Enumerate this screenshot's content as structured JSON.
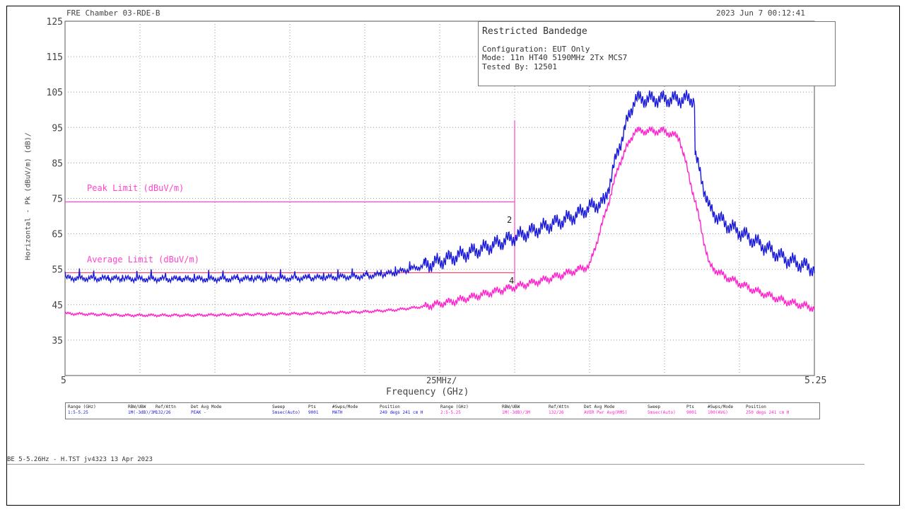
{
  "header": {
    "title": "FRE Chamber 03-RDE-B",
    "datetime": "2023 Jun 7   00:12:41"
  },
  "infobox": {
    "title": "Restricted Bandedge",
    "configuration": "Configuration: EUT Only",
    "mode": "Mode: 11n HT40 5190MHz 2Tx MCS7",
    "tested_by": "Tested By: 12501"
  },
  "footer": "BE 5-5.26Hz - H.TST  jv4323 13 Apr 2023",
  "colors": {
    "peak": "#1a1ad8",
    "average": "#ff22cc",
    "grid": "#9a9a9a",
    "limit": "#ff44cc"
  },
  "markers": [
    "2",
    "4"
  ],
  "chart_data": {
    "type": "line",
    "ylabel": "Horizontal - Pk (dBuV/m) (dB)/",
    "xlabel": "Frequency (GHz)",
    "x_center_label": "25MHz/",
    "xlim": [
      5,
      5.25
    ],
    "x_tick_labels": [
      "5",
      "5.25"
    ],
    "ylim": [
      25,
      125
    ],
    "y_ticks": [
      125,
      115,
      105,
      95,
      85,
      75,
      65,
      55,
      45,
      35
    ],
    "grid": true,
    "limits": [
      {
        "name": "Peak Limit (dBuV/m)",
        "value": 74,
        "x_end": 5.15
      },
      {
        "name": "Average Limit (dBuV/m)",
        "value": 54,
        "x_end": 5.15
      }
    ],
    "marker_x": 5.15,
    "series": [
      {
        "x": [
          5.0,
          5.02,
          5.04,
          5.06,
          5.08,
          5.1,
          5.11,
          5.12,
          5.13,
          5.14,
          5.145,
          5.15,
          5.16,
          5.17,
          5.175,
          5.18,
          5.185,
          5.19,
          5.2,
          5.21,
          5.2,
          5.205,
          5.21,
          5.215,
          5.22,
          5.23,
          5.24,
          5.25
        ],
        "y": [
          52.5,
          52.3,
          52.2,
          52.3,
          52.5,
          53,
          54,
          56,
          58.5,
          61,
          62.5,
          64,
          67,
          70,
          72.5,
          74,
          90,
          103,
          103,
          103,
          103,
          101,
          88,
          72,
          68,
          63,
          58,
          55
        ]
      },
      {
        "x": [
          5.0,
          5.02,
          5.04,
          5.06,
          5.08,
          5.1,
          5.11,
          5.12,
          5.13,
          5.14,
          5.15,
          5.16,
          5.17,
          5.175,
          5.18,
          5.185,
          5.19,
          5.2,
          5.205,
          5.21,
          5.215,
          5.22,
          5.23,
          5.24,
          5.25
        ],
        "y": [
          42.5,
          42,
          42,
          42.2,
          42.5,
          43,
          43.5,
          44.5,
          46,
          48,
          50,
          52,
          54.5,
          56,
          70,
          85,
          94,
          94,
          92,
          75,
          56,
          53,
          49,
          46,
          44
        ]
      }
    ]
  },
  "sweep_table": {
    "left": {
      "range_h": "Range (GHz)",
      "range_v": "1:5-5.25",
      "rbw_h": "RBW/UBW",
      "rbw_v": "1M(-3dB)/3M",
      "ref_h": "Ref/Attn",
      "ref_v": "132/26",
      "det_h": "Det  Avg Mode",
      "det_v": "PEAK   -",
      "sweep_h": "Sweep",
      "sweep_v": "5msec(Auto)",
      "pts_h": "Pts",
      "pts_v": "9001",
      "swps_h": "#Swps/Mode",
      "swps_v": "MATH",
      "pos_h": "Position",
      "pos_v": "249 degs 241 cm H"
    },
    "right": {
      "range_h": "Range (GHz)",
      "range_v": "2:5-5.25",
      "rbw_h": "RBW/UBW",
      "rbw_v": "1M(-3dB)/3M",
      "ref_h": "Ref/Attn",
      "ref_v": "132/26",
      "det_h": "Det  Avg Mode",
      "det_v": "AVER Pwr Avg(RMS)",
      "sweep_h": "Sweep",
      "sweep_v": "5msec(Auto)",
      "pts_h": "Pts",
      "pts_v": "9001",
      "swps_h": "#Swps/Mode",
      "swps_v": "100(AVG)",
      "pos_h": "Position",
      "pos_v": "250 degs 241 cm H"
    }
  }
}
